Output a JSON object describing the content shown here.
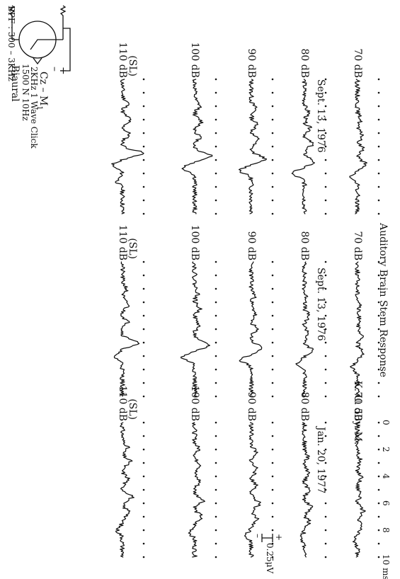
{
  "page": {
    "title": "Auditory Brain Stem Response",
    "patient": "K. U.   50y.  M."
  },
  "setup": {
    "line1": "Biaural",
    "line2": "1500 N   10Hz",
    "line3": "2KHz  1 Wave Click",
    "derivation": "Cz – M",
    "derivation_sub": "1",
    "filter": "BPF : 300 – 3KHz",
    "plus": "+",
    "minus": "–"
  },
  "chart_data": {
    "type": "line",
    "title": "Auditory Brain Stem Response",
    "x_unit": "msec",
    "xlim": [
      0,
      10
    ],
    "x_ticks": [
      "0",
      "2",
      "4",
      "6",
      "8",
      "10 msec"
    ],
    "scale_bar": {
      "value": "0.25μV",
      "plus": "+",
      "minus": "–"
    },
    "panels": [
      {
        "date": "Sept. 13, 1976",
        "series": [
          {
            "label": "110 dB",
            "sublabel": "(SL)",
            "seed": 11,
            "peaks": [
              [
                1.8,
                0.7
              ],
              [
                3.0,
                0.9
              ],
              [
                4.1,
                0.8
              ],
              [
                5.5,
                2.4
              ],
              [
                6.4,
                -1.2
              ],
              [
                7.6,
                -0.6
              ]
            ]
          },
          {
            "label": "100 dB",
            "seed": 12,
            "peaks": [
              [
                2.0,
                0.6
              ],
              [
                3.2,
                0.8
              ],
              [
                4.3,
                0.6
              ],
              [
                5.7,
                2.0
              ],
              [
                6.6,
                -1.4
              ]
            ]
          },
          {
            "label": "90 dB",
            "seed": 13,
            "peaks": [
              [
                2.2,
                0.5
              ],
              [
                3.4,
                0.7
              ],
              [
                4.5,
                0.8
              ],
              [
                5.9,
                1.6
              ],
              [
                6.8,
                -1.3
              ]
            ]
          },
          {
            "label": "80 dB",
            "seed": 14,
            "peaks": [
              [
                2.5,
                0.5
              ],
              [
                3.7,
                0.7
              ],
              [
                4.8,
                0.9
              ],
              [
                6.1,
                1.1
              ],
              [
                7.0,
                -1.5
              ]
            ]
          },
          {
            "label": "70 dB",
            "seed": 15,
            "peaks": [
              [
                3.0,
                0.4
              ],
              [
                4.2,
                0.6
              ],
              [
                5.2,
                0.7
              ],
              [
                6.3,
                0.9
              ],
              [
                7.3,
                -0.8
              ]
            ]
          }
        ]
      },
      {
        "date": "Sept. 13, 1976",
        "series": [
          {
            "label": "110 dB",
            "sublabel": "(SL)",
            "seed": 21,
            "peaks": [
              [
                2.0,
                0.5
              ],
              [
                3.2,
                0.7
              ],
              [
                4.5,
                0.6
              ],
              [
                6.0,
                1.9
              ],
              [
                7.0,
                -1.0
              ]
            ]
          },
          {
            "label": "100 dB",
            "seed": 22,
            "peaks": [
              [
                2.3,
                0.4
              ],
              [
                3.5,
                0.6
              ],
              [
                4.7,
                0.5
              ],
              [
                6.2,
                1.7
              ],
              [
                7.1,
                -1.5
              ]
            ]
          },
          {
            "label": "90 dB",
            "seed": 23,
            "peaks": [
              [
                2.5,
                0.4
              ],
              [
                3.8,
                0.5
              ],
              [
                5.0,
                0.6
              ],
              [
                6.4,
                1.3
              ],
              [
                7.3,
                -1.2
              ]
            ]
          },
          {
            "label": "80 dB",
            "seed": 24,
            "peaks": [
              [
                2.8,
                0.3
              ],
              [
                4.0,
                0.5
              ],
              [
                5.3,
                0.5
              ],
              [
                6.6,
                1.0
              ],
              [
                7.5,
                -0.8
              ]
            ]
          },
          {
            "label": "70 dB",
            "seed": 25,
            "peaks": [
              [
                3.2,
                0.3
              ],
              [
                4.4,
                0.4
              ],
              [
                5.6,
                0.5
              ],
              [
                6.8,
                0.8
              ],
              [
                7.8,
                -0.6
              ]
            ]
          }
        ]
      },
      {
        "date": "Jan. 20, 1977",
        "series": [
          {
            "label": "110 dB",
            "sublabel": "(SL)",
            "seed": 31,
            "peaks": [
              [
                1.8,
                0.6
              ],
              [
                2.9,
                0.9
              ],
              [
                4.2,
                0.7
              ],
              [
                5.5,
                1.2
              ],
              [
                6.7,
                0.9
              ],
              [
                8.0,
                -0.6
              ]
            ]
          },
          {
            "label": "100 dB",
            "seed": 32,
            "peaks": [
              [
                2.0,
                0.5
              ],
              [
                3.2,
                0.8
              ],
              [
                4.4,
                0.6
              ],
              [
                5.8,
                1.1
              ],
              [
                7.0,
                0.8
              ],
              [
                8.2,
                -0.5
              ]
            ]
          },
          {
            "label": "90 dB",
            "seed": 33,
            "peaks": [
              [
                2.2,
                0.5
              ],
              [
                3.5,
                0.7
              ],
              [
                4.7,
                0.6
              ],
              [
                6.0,
                1.0
              ],
              [
                7.2,
                0.7
              ],
              [
                8.4,
                -0.6
              ]
            ]
          },
          {
            "label": "80 dB",
            "seed": 34,
            "peaks": [
              [
                2.5,
                0.4
              ],
              [
                3.8,
                0.6
              ],
              [
                5.0,
                0.5
              ],
              [
                6.3,
                0.9
              ],
              [
                7.4,
                0.6
              ],
              [
                8.6,
                -0.5
              ]
            ]
          },
          {
            "label": "70 dB",
            "seed": 35,
            "peaks": [
              [
                2.8,
                0.3
              ],
              [
                4.1,
                0.5
              ],
              [
                5.3,
                0.4
              ],
              [
                6.6,
                0.7
              ],
              [
                7.7,
                0.5
              ],
              [
                8.8,
                -0.4
              ]
            ]
          }
        ]
      }
    ]
  }
}
